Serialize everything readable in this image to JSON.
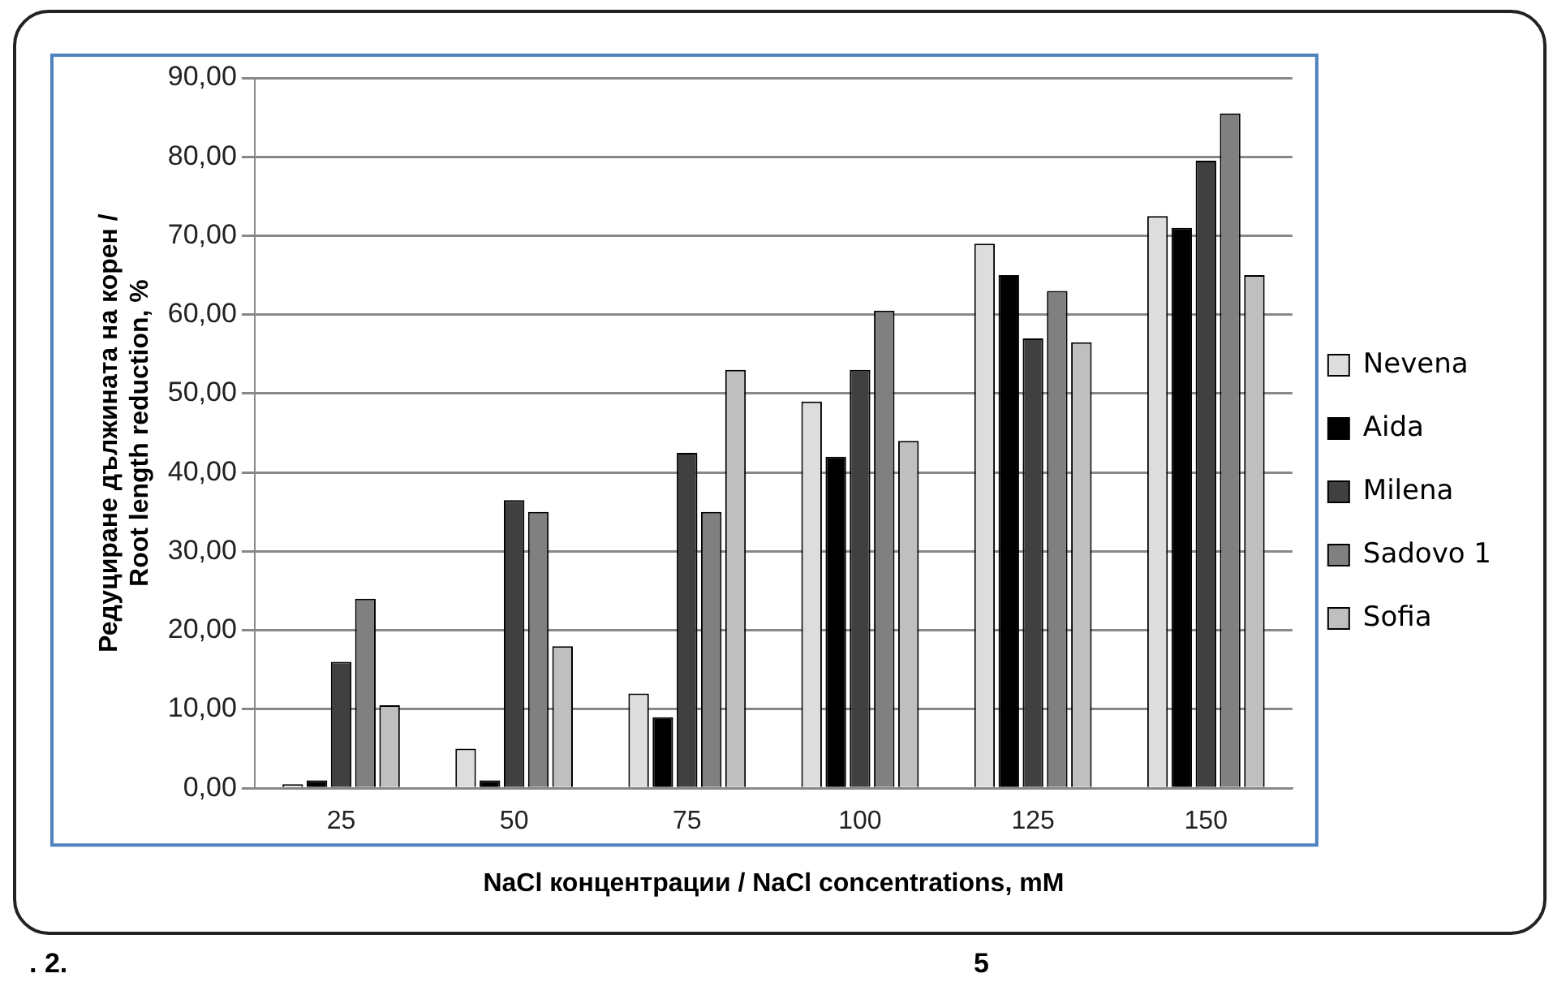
{
  "chart_data": {
    "type": "bar",
    "xlabel": "NaCl концентрации / NaCl concentrations, mM",
    "ylabel": "Редуциране дължината на корен /\nRoot length reduction, %",
    "categories": [
      "25",
      "50",
      "75",
      "100",
      "125",
      "150"
    ],
    "series": [
      {
        "name": "Nevena",
        "color": "#dddddd",
        "values": [
          0.5,
          5,
          12,
          49,
          69,
          72.5
        ]
      },
      {
        "name": "Aida",
        "color": "#000000",
        "values": [
          1,
          1,
          9,
          42,
          65,
          71
        ]
      },
      {
        "name": "Milena",
        "color": "#404040",
        "values": [
          16,
          36.5,
          42.5,
          53,
          57,
          79.5
        ]
      },
      {
        "name": "Sadovo 1",
        "color": "#808080",
        "values": [
          24,
          35,
          35,
          60.5,
          63,
          85.5
        ]
      },
      {
        "name": "Sofia",
        "color": "#bfbfbf",
        "values": [
          10.5,
          18,
          53,
          44,
          56.5,
          65
        ]
      }
    ],
    "ylim": [
      0,
      90
    ],
    "yticks": [
      {
        "value": 0,
        "label": "0,00"
      },
      {
        "value": 10,
        "label": "10,00"
      },
      {
        "value": 20,
        "label": "20,00"
      },
      {
        "value": 30,
        "label": "30,00"
      },
      {
        "value": 40,
        "label": "40,00"
      },
      {
        "value": 50,
        "label": "50,00"
      },
      {
        "value": 60,
        "label": "60,00"
      },
      {
        "value": 70,
        "label": "70,00"
      },
      {
        "value": 80,
        "label": "80,00"
      },
      {
        "value": 90,
        "label": "90,00"
      }
    ],
    "grid": "y",
    "legend": "right",
    "annotations": [
      ". 2.",
      "5"
    ]
  }
}
